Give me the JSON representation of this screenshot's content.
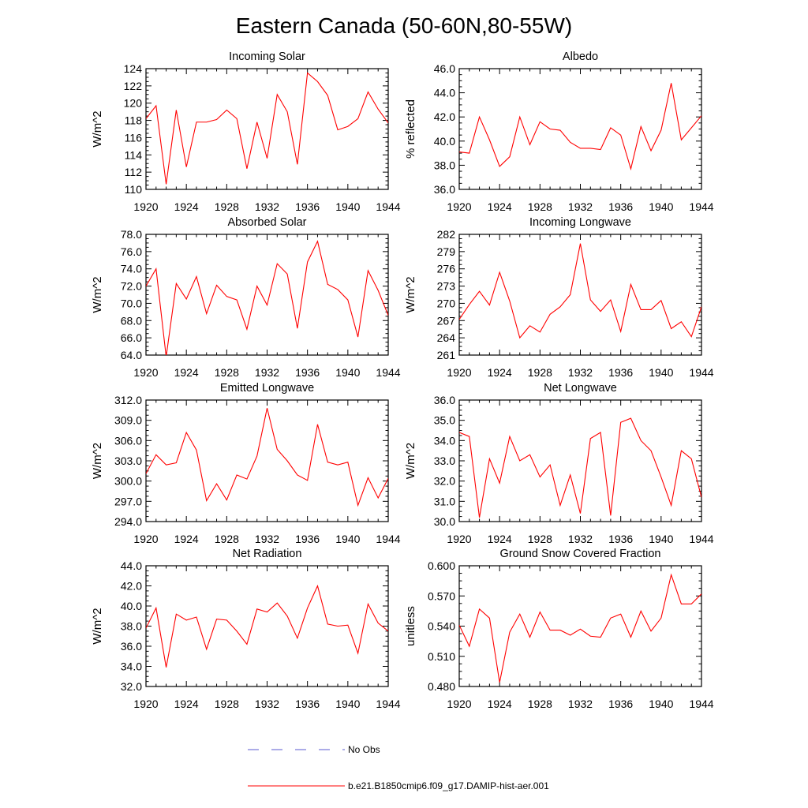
{
  "figure": {
    "title": "Eastern Canada (50-60N,80-55W)",
    "legend": [
      {
        "label": "No Obs",
        "style": "dashed",
        "color": "#5a5ad2"
      },
      {
        "label": "b.e21.B1850cmip6.f09_g17.DAMIP-hist-aer.001",
        "style": "solid",
        "color": "#ff0000"
      }
    ]
  },
  "chart_data": [
    {
      "type": "line",
      "title": "Incoming Solar",
      "ylabel": "W/m^2",
      "xlim": [
        1920,
        1944
      ],
      "ylim": [
        110,
        124
      ],
      "xticks": [
        1920,
        1924,
        1928,
        1932,
        1936,
        1940,
        1944
      ],
      "xtick_labels": [
        "1920",
        "1924",
        "1928",
        "1932",
        "1936",
        "1940",
        "1944"
      ],
      "yticks": [
        110,
        112,
        114,
        116,
        118,
        120,
        122,
        124
      ],
      "ytick_labels": [
        "110",
        "112",
        "114",
        "116",
        "118",
        "120",
        "122",
        "124"
      ],
      "series": [
        {
          "x": [
            1920,
            1921,
            1922,
            1923,
            1924,
            1925,
            1926,
            1927,
            1928,
            1929,
            1930,
            1931,
            1932,
            1933,
            1934,
            1935,
            1936,
            1937,
            1938,
            1939,
            1940,
            1941,
            1942,
            1943,
            1944
          ],
          "y": [
            118.2,
            119.7,
            110.6,
            119.2,
            112.6,
            117.8,
            117.8,
            118.1,
            119.2,
            118.2,
            112.4,
            117.8,
            113.6,
            121.0,
            119.0,
            112.9,
            123.5,
            122.5,
            120.9,
            116.9,
            117.3,
            118.2,
            121.3,
            119.3,
            117.7
          ]
        }
      ]
    },
    {
      "type": "line",
      "title": "Albedo",
      "ylabel": "% reflected",
      "xlim": [
        1920,
        1944
      ],
      "ylim": [
        36,
        46
      ],
      "xticks": [
        1920,
        1924,
        1928,
        1932,
        1936,
        1940,
        1944
      ],
      "xtick_labels": [
        "1920",
        "1924",
        "1928",
        "1932",
        "1936",
        "1940",
        "1944"
      ],
      "yticks": [
        36,
        38,
        40,
        42,
        44,
        46
      ],
      "ytick_labels": [
        "36.0",
        "38.0",
        "40.0",
        "42.0",
        "44.0",
        "46.0"
      ],
      "series": [
        {
          "x": [
            1920,
            1921,
            1922,
            1923,
            1924,
            1925,
            1926,
            1927,
            1928,
            1929,
            1930,
            1931,
            1932,
            1933,
            1934,
            1935,
            1936,
            1937,
            1938,
            1939,
            1940,
            1941,
            1942,
            1943,
            1944
          ],
          "y": [
            39.1,
            39.0,
            42.0,
            40.1,
            37.9,
            38.7,
            42.0,
            39.7,
            41.6,
            41.0,
            40.9,
            39.9,
            39.4,
            39.4,
            39.3,
            41.1,
            40.5,
            37.7,
            41.2,
            39.2,
            40.9,
            44.8,
            40.1,
            41.1,
            42.1
          ]
        }
      ]
    },
    {
      "type": "line",
      "title": "Absorbed Solar",
      "ylabel": "W/m^2",
      "xlim": [
        1920,
        1944
      ],
      "ylim": [
        64,
        78
      ],
      "xticks": [
        1920,
        1924,
        1928,
        1932,
        1936,
        1940,
        1944
      ],
      "xtick_labels": [
        "1920",
        "1924",
        "1928",
        "1932",
        "1936",
        "1940",
        "1944"
      ],
      "yticks": [
        64,
        66,
        68,
        70,
        72,
        74,
        76,
        78
      ],
      "ytick_labels": [
        "64.0",
        "66.0",
        "68.0",
        "70.0",
        "72.0",
        "74.0",
        "76.0",
        "78.0"
      ],
      "series": [
        {
          "x": [
            1920,
            1921,
            1922,
            1923,
            1924,
            1925,
            1926,
            1927,
            1928,
            1929,
            1930,
            1931,
            1932,
            1933,
            1934,
            1935,
            1936,
            1937,
            1938,
            1939,
            1940,
            1941,
            1942,
            1943,
            1944
          ],
          "y": [
            72.0,
            74.0,
            63.8,
            72.3,
            70.5,
            73.1,
            68.8,
            72.1,
            70.8,
            70.4,
            67.0,
            72.0,
            69.8,
            74.6,
            73.4,
            67.1,
            74.8,
            77.2,
            72.2,
            71.6,
            70.4,
            66.1,
            73.8,
            71.5,
            68.6
          ]
        }
      ]
    },
    {
      "type": "line",
      "title": "Incoming Longwave",
      "ylabel": "W/m^2",
      "xlim": [
        1920,
        1944
      ],
      "ylim": [
        261,
        282
      ],
      "xticks": [
        1920,
        1924,
        1928,
        1932,
        1936,
        1940,
        1944
      ],
      "xtick_labels": [
        "1920",
        "1924",
        "1928",
        "1932",
        "1936",
        "1940",
        "1944"
      ],
      "yticks": [
        261,
        264,
        267,
        270,
        273,
        276,
        279,
        282
      ],
      "ytick_labels": [
        "261",
        "264",
        "267",
        "270",
        "273",
        "276",
        "279",
        "282"
      ],
      "series": [
        {
          "x": [
            1920,
            1921,
            1922,
            1923,
            1924,
            1925,
            1926,
            1927,
            1928,
            1929,
            1930,
            1931,
            1932,
            1933,
            1934,
            1935,
            1936,
            1937,
            1938,
            1939,
            1940,
            1941,
            1942,
            1943,
            1944
          ],
          "y": [
            267.2,
            269.8,
            272.1,
            269.7,
            275.4,
            270.4,
            264.0,
            266.1,
            265.0,
            268.1,
            269.4,
            271.5,
            280.4,
            270.6,
            268.6,
            270.6,
            265.1,
            273.3,
            268.9,
            268.9,
            270.5,
            265.6,
            266.8,
            264.2,
            269.4
          ]
        }
      ]
    },
    {
      "type": "line",
      "title": "Emitted Longwave",
      "ylabel": "W/m^2",
      "xlim": [
        1920,
        1944
      ],
      "ylim": [
        294,
        312
      ],
      "xticks": [
        1920,
        1924,
        1928,
        1932,
        1936,
        1940,
        1944
      ],
      "xtick_labels": [
        "1920",
        "1924",
        "1928",
        "1932",
        "1936",
        "1940",
        "1944"
      ],
      "yticks": [
        294,
        297,
        300,
        303,
        306,
        309,
        312
      ],
      "ytick_labels": [
        "294.0",
        "297.0",
        "300.0",
        "303.0",
        "306.0",
        "309.0",
        "312.0"
      ],
      "series": [
        {
          "x": [
            1920,
            1921,
            1922,
            1923,
            1924,
            1925,
            1926,
            1927,
            1928,
            1929,
            1930,
            1931,
            1932,
            1933,
            1934,
            1935,
            1936,
            1937,
            1938,
            1939,
            1940,
            1941,
            1942,
            1943,
            1944
          ],
          "y": [
            301.1,
            303.9,
            302.4,
            302.7,
            307.2,
            304.6,
            297.1,
            299.6,
            297.2,
            300.9,
            300.3,
            303.7,
            310.8,
            304.7,
            303.0,
            300.9,
            300.1,
            308.4,
            302.8,
            302.4,
            302.8,
            296.4,
            300.5,
            297.5,
            300.4
          ]
        }
      ]
    },
    {
      "type": "line",
      "title": "Net Longwave",
      "ylabel": "W/m^2",
      "xlim": [
        1920,
        1944
      ],
      "ylim": [
        30,
        36
      ],
      "xticks": [
        1920,
        1924,
        1928,
        1932,
        1936,
        1940,
        1944
      ],
      "xtick_labels": [
        "1920",
        "1924",
        "1928",
        "1932",
        "1936",
        "1940",
        "1944"
      ],
      "yticks": [
        30,
        31,
        32,
        33,
        34,
        35,
        36
      ],
      "ytick_labels": [
        "30.0",
        "31.0",
        "32.0",
        "33.0",
        "34.0",
        "35.0",
        "36.0"
      ],
      "series": [
        {
          "x": [
            1920,
            1921,
            1922,
            1923,
            1924,
            1925,
            1926,
            1927,
            1928,
            1929,
            1930,
            1931,
            1932,
            1933,
            1934,
            1935,
            1936,
            1937,
            1938,
            1939,
            1940,
            1941,
            1942,
            1943,
            1944
          ],
          "y": [
            34.4,
            34.2,
            30.2,
            33.1,
            31.9,
            34.2,
            33.0,
            33.3,
            32.2,
            32.8,
            30.8,
            32.3,
            30.4,
            34.1,
            34.4,
            30.3,
            34.9,
            35.1,
            34.0,
            33.5,
            32.2,
            30.8,
            33.5,
            33.1,
            31.2
          ]
        }
      ]
    },
    {
      "type": "line",
      "title": "Net Radiation",
      "ylabel": "W/m^2",
      "xlim": [
        1920,
        1944
      ],
      "ylim": [
        32,
        44
      ],
      "xticks": [
        1920,
        1924,
        1928,
        1932,
        1936,
        1940,
        1944
      ],
      "xtick_labels": [
        "1920",
        "1924",
        "1928",
        "1932",
        "1936",
        "1940",
        "1944"
      ],
      "yticks": [
        32,
        34,
        36,
        38,
        40,
        42,
        44
      ],
      "ytick_labels": [
        "32.0",
        "34.0",
        "36.0",
        "38.0",
        "40.0",
        "42.0",
        "44.0"
      ],
      "series": [
        {
          "x": [
            1920,
            1921,
            1922,
            1923,
            1924,
            1925,
            1926,
            1927,
            1928,
            1929,
            1930,
            1931,
            1932,
            1933,
            1934,
            1935,
            1936,
            1937,
            1938,
            1939,
            1940,
            1941,
            1942,
            1943,
            1944
          ],
          "y": [
            37.8,
            39.8,
            33.9,
            39.2,
            38.6,
            38.9,
            35.7,
            38.7,
            38.6,
            37.5,
            36.2,
            39.7,
            39.4,
            40.3,
            39.0,
            36.8,
            39.8,
            42.0,
            38.2,
            38.0,
            38.1,
            35.3,
            40.2,
            38.3,
            37.5
          ]
        }
      ]
    },
    {
      "type": "line",
      "title": "Ground Snow Covered Fraction",
      "ylabel": "unitless",
      "xlim": [
        1920,
        1944
      ],
      "ylim": [
        0.48,
        0.6
      ],
      "xticks": [
        1920,
        1924,
        1928,
        1932,
        1936,
        1940,
        1944
      ],
      "xtick_labels": [
        "1920",
        "1924",
        "1928",
        "1932",
        "1936",
        "1940",
        "1944"
      ],
      "yticks": [
        0.48,
        0.51,
        0.54,
        0.57,
        0.6
      ],
      "ytick_labels": [
        "0.480",
        "0.510",
        "0.540",
        "0.570",
        "0.600"
      ],
      "series": [
        {
          "x": [
            1920,
            1921,
            1922,
            1923,
            1924,
            1925,
            1926,
            1927,
            1928,
            1929,
            1930,
            1931,
            1932,
            1933,
            1934,
            1935,
            1936,
            1937,
            1938,
            1939,
            1940,
            1941,
            1942,
            1943,
            1944
          ],
          "y": [
            0.541,
            0.52,
            0.557,
            0.548,
            0.484,
            0.534,
            0.552,
            0.529,
            0.554,
            0.536,
            0.536,
            0.531,
            0.537,
            0.53,
            0.529,
            0.548,
            0.552,
            0.529,
            0.555,
            0.535,
            0.548,
            0.591,
            0.562,
            0.562,
            0.572
          ]
        }
      ]
    }
  ]
}
